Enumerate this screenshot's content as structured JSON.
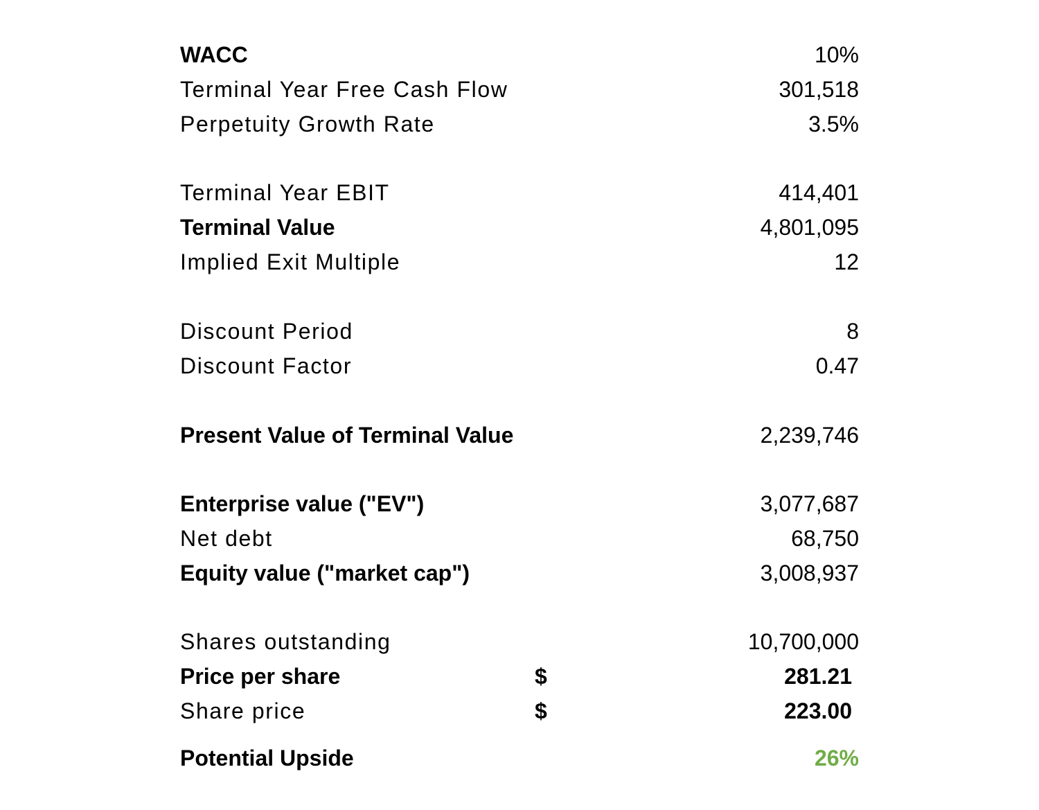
{
  "rows": [
    {
      "label": "WACC",
      "value": "10%"
    },
    {
      "label": "Terminal Year Free Cash Flow",
      "value": "301,518"
    },
    {
      "label": "Perpetuity Growth Rate",
      "value": "3.5%"
    },
    {
      "label": "Terminal Year EBIT",
      "value": "414,401"
    },
    {
      "label": "Terminal Value",
      "value": "4,801,095"
    },
    {
      "label": "Implied Exit Multiple",
      "value": "12"
    },
    {
      "label": "Discount Period",
      "value": "8"
    },
    {
      "label": "Discount Factor",
      "value": "0.47"
    },
    {
      "label": "Present Value of Terminal Value",
      "value": "2,239,746"
    },
    {
      "label": "Enterprise value (\"EV\")",
      "value": "3,077,687"
    },
    {
      "label": "Net debt",
      "value": "68,750"
    },
    {
      "label": "Equity value (\"market cap\")",
      "value": "3,008,937"
    },
    {
      "label": "Shares outstanding",
      "value": "10,700,000"
    },
    {
      "label": "Price per share",
      "currency": "$",
      "value": "281.21"
    },
    {
      "label": "Share price",
      "currency": "$",
      "value": "223.00"
    },
    {
      "label": "Potential Upside",
      "value": "26%"
    }
  ],
  "colors": {
    "text": "#000000",
    "upside": "#70ad47",
    "background": "#ffffff"
  }
}
